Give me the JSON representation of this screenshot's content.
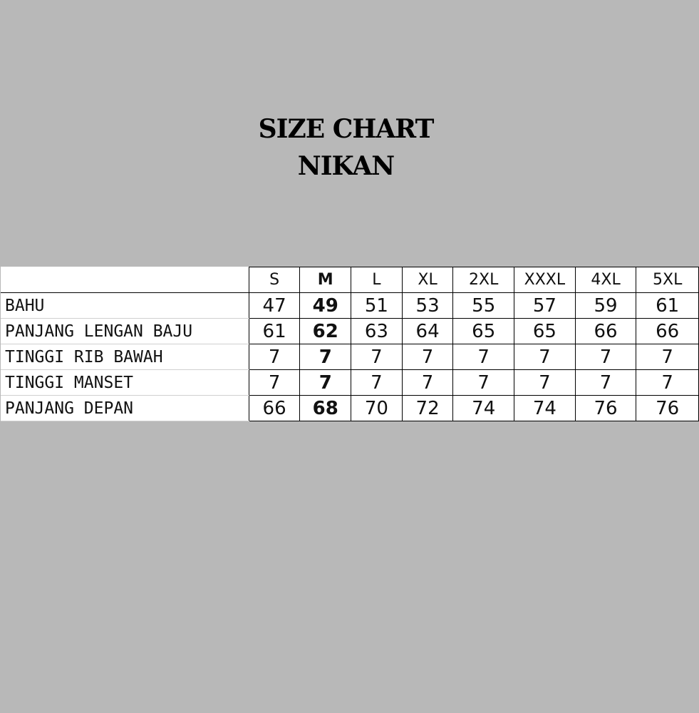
{
  "title_line1": "SIZE CHART",
  "title_line2": "NIKAN",
  "table": {
    "sizes": [
      "S",
      "M",
      "L",
      "XL",
      "2XL",
      "XXXL",
      "4XL",
      "5XL"
    ],
    "highlighted_size": "M",
    "rows": [
      {
        "label": "BAHU",
        "values": [
          "47",
          "49",
          "51",
          "53",
          "55",
          "57",
          "59",
          "61"
        ]
      },
      {
        "label": "PANJANG LENGAN BAJU",
        "values": [
          "61",
          "62",
          "63",
          "64",
          "65",
          "65",
          "66",
          "66"
        ]
      },
      {
        "label": "TINGGI RIB BAWAH",
        "values": [
          "7",
          "7",
          "7",
          "7",
          "7",
          "7",
          "7",
          "7"
        ]
      },
      {
        "label": "TINGGI MANSET",
        "values": [
          "7",
          "7",
          "7",
          "7",
          "7",
          "7",
          "7",
          "7"
        ]
      },
      {
        "label": "PANJANG DEPAN",
        "values": [
          "66",
          "68",
          "70",
          "72",
          "74",
          "74",
          "76",
          "76"
        ]
      }
    ]
  }
}
